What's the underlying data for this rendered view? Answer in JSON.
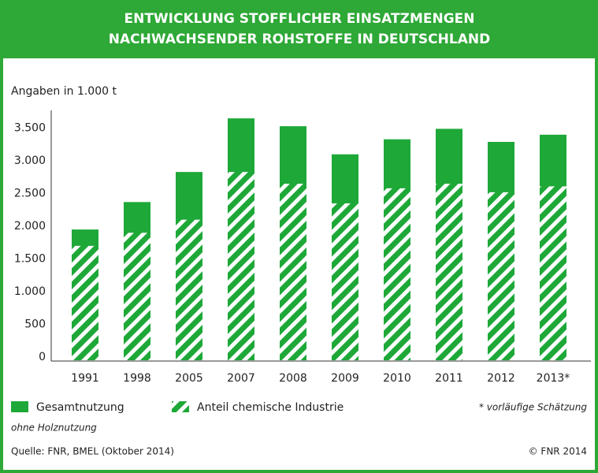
{
  "chart_data": {
    "type": "bar",
    "title": [
      "ENTWICKLUNG STOFFLICHER EINSATZMENGEN",
      "NACHWACHSENDER ROHSTOFFE IN DEUTSCHLAND"
    ],
    "y_label": "Angaben in 1.000 t",
    "categories": [
      "1991",
      "1998",
      "2005",
      "2007",
      "2008",
      "2009",
      "2010",
      "2011",
      "2012",
      "2013*"
    ],
    "series": [
      {
        "name": "Gesamtnutzung",
        "color": "#1ea838",
        "fill": "solid",
        "values": [
          2000,
          2420,
          2880,
          3700,
          3580,
          3150,
          3380,
          3540,
          3340,
          3450
        ]
      },
      {
        "name": "Anteil chemische Industrie",
        "color": "#1ea838",
        "fill": "hatch",
        "values": [
          1750,
          1950,
          2150,
          2880,
          2700,
          2400,
          2630,
          2700,
          2570,
          2660
        ]
      }
    ],
    "ylim": [
      0,
      3750
    ],
    "yticks": [
      0,
      500,
      {
        "value": 1000,
        "label": "1.000"
      },
      {
        "value": 1500,
        "label": "1.500"
      },
      {
        "value": 2000,
        "label": "2.000"
      },
      {
        "value": 2500,
        "label": "2.500"
      },
      {
        "value": 3000,
        "label": "3.000"
      },
      {
        "value": 3500,
        "label": "3.500"
      }
    ],
    "note": "* vorläufige Schätzung",
    "footnote": "ohne Holznutzung",
    "source": "Quelle: FNR, BMEL (Oktober 2014)",
    "copyright": "© FNR 2014"
  }
}
